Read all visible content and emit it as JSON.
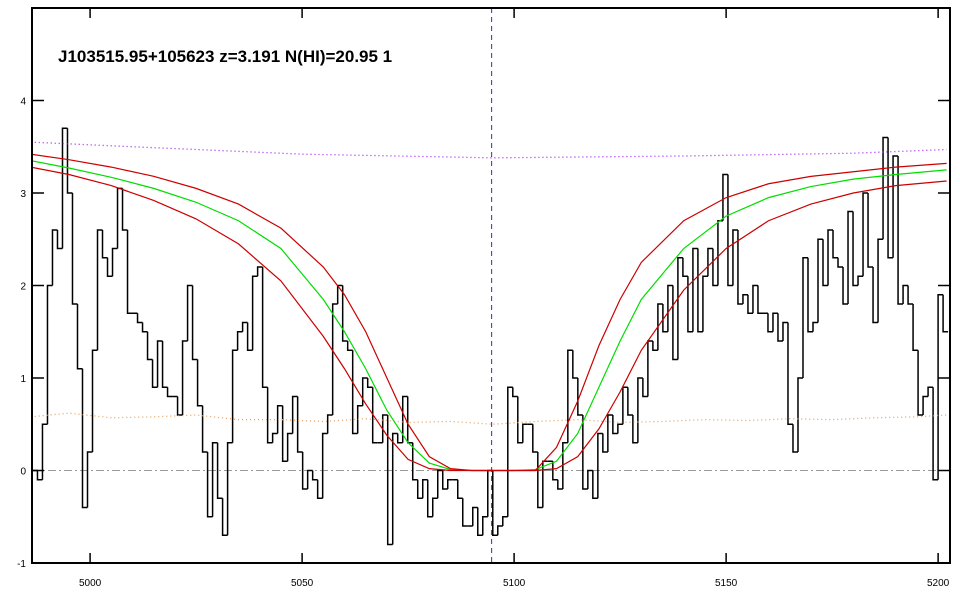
{
  "chart_data": {
    "type": "line",
    "title": "J103515.95+105623 z=3.191 N(HI)=20.95 1",
    "xlim": [
      4986.3,
      5202.8
    ],
    "ylim": [
      -1,
      5
    ],
    "xticks": [
      5000,
      5050,
      5100,
      5150,
      5200
    ],
    "yticks": [
      -1,
      0,
      1,
      2,
      3,
      4
    ],
    "vline": 5094.7,
    "hline": 0,
    "series": [
      {
        "color": "#000000",
        "style": "step",
        "x": [
          4987,
          4988.18,
          4989.36,
          4990.54,
          4991.72,
          4992.9,
          4994.08,
          4995.26,
          4996.44,
          4997.62,
          4998.8,
          4999.98,
          5001.16,
          5002.34,
          5003.52,
          5004.7,
          5005.88,
          5007.06,
          5008.24,
          5009.42,
          5010.6,
          5011.78,
          5012.96,
          5014.14,
          5015.32,
          5016.5,
          5017.68,
          5018.86,
          5020.04,
          5021.22,
          5022.4,
          5023.58,
          5024.76,
          5025.94,
          5027.12,
          5028.3,
          5029.48,
          5030.66,
          5031.84,
          5033.02,
          5034.2,
          5035.38,
          5036.56,
          5037.74,
          5038.92,
          5040.1,
          5041.28,
          5042.46,
          5043.64,
          5044.82,
          5046,
          5047.18,
          5048.36,
          5049.54,
          5050.72,
          5051.9,
          5053.08,
          5054.26,
          5055.44,
          5056.62,
          5057.8,
          5058.98,
          5060.16,
          5061.34,
          5062.52,
          5063.7,
          5064.88,
          5066.06,
          5067.24,
          5068.42,
          5069.6,
          5070.78,
          5071.96,
          5073.14,
          5074.32,
          5075.5,
          5076.68,
          5077.86,
          5079.04,
          5080.22,
          5081.4,
          5082.58,
          5083.76,
          5084.94,
          5086.12,
          5087.3,
          5088.48,
          5089.66,
          5090.84,
          5092.02,
          5093.2,
          5094.38,
          5095.56,
          5096.74,
          5097.92,
          5099.1,
          5100.28,
          5101.46,
          5102.64,
          5103.82,
          5105,
          5106.18,
          5107.36,
          5108.54,
          5109.72,
          5110.9,
          5112.08,
          5113.26,
          5114.44,
          5115.62,
          5116.8,
          5117.98,
          5119.16,
          5120.34,
          5121.52,
          5122.7,
          5123.88,
          5125.06,
          5126.24,
          5127.42,
          5128.6,
          5129.78,
          5130.96,
          5132.14,
          5133.32,
          5134.5,
          5135.68,
          5136.86,
          5138.04,
          5139.22,
          5140.4,
          5141.58,
          5142.76,
          5143.94,
          5145.12,
          5146.3,
          5147.48,
          5148.66,
          5149.84,
          5151.02,
          5152.2,
          5153.38,
          5154.56,
          5155.74,
          5156.92,
          5158.1,
          5159.28,
          5160.46,
          5161.64,
          5162.82,
          5164,
          5165.18,
          5166.36,
          5167.54,
          5168.72,
          5169.9,
          5171.08,
          5172.26,
          5173.44,
          5174.62,
          5175.8,
          5176.98,
          5178.16,
          5179.34,
          5180.52,
          5181.7,
          5182.88,
          5184.06,
          5185.24,
          5186.42,
          5187.6,
          5188.78,
          5189.96,
          5191.14,
          5192.32,
          5193.5,
          5194.68,
          5195.86,
          5197.04,
          5198.22,
          5199.4,
          5200.58,
          5201.76
        ],
        "values": [
          0,
          -0.1,
          0.5,
          2.0,
          2.6,
          2.4,
          3.7,
          3.0,
          1.8,
          1.1,
          -0.4,
          0.2,
          1.3,
          2.6,
          2.3,
          2.1,
          2.4,
          3.05,
          2.6,
          1.7,
          1.7,
          1.6,
          1.5,
          1.2,
          0.9,
          1.4,
          0.9,
          0.8,
          0.8,
          0.6,
          1.4,
          2.0,
          1.2,
          0.7,
          0.2,
          -0.5,
          0.3,
          -0.3,
          -0.7,
          0.3,
          1.3,
          1.5,
          1.6,
          1.3,
          2.1,
          2.2,
          0.9,
          0.3,
          0.4,
          0.7,
          0.1,
          0.4,
          0.8,
          0.2,
          -0.2,
          0.0,
          -0.1,
          -0.3,
          0.4,
          0.6,
          1.8,
          2.0,
          1.4,
          1.3,
          0.4,
          0.7,
          1.0,
          0.9,
          0.3,
          0.3,
          0.6,
          -0.8,
          0.4,
          0.3,
          0.8,
          0.3,
          -0.1,
          -0.3,
          -0.1,
          -0.5,
          -0.3,
          0.0,
          -0.2,
          -0.1,
          -0.1,
          -0.3,
          -0.6,
          -0.6,
          -0.4,
          -0.7,
          -0.5,
          0.0,
          -0.7,
          -0.6,
          -0.5,
          0.9,
          0.8,
          0.3,
          0.5,
          0.5,
          0.2,
          -0.4,
          0.1,
          0.1,
          -0.1,
          -0.2,
          0.3,
          1.3,
          1.0,
          0.6,
          -0.2,
          0.0,
          -0.3,
          0.4,
          0.2,
          0.6,
          0.4,
          0.5,
          0.9,
          0.6,
          0.3,
          1.0,
          0.8,
          1.4,
          1.3,
          1.8,
          1.5,
          2.0,
          1.2,
          2.3,
          2.1,
          1.5,
          2.4,
          1.5,
          2.1,
          2.4,
          2.0,
          2.7,
          3.2,
          2.0,
          2.6,
          1.8,
          1.9,
          1.7,
          2.0,
          1.7,
          1.7,
          1.5,
          1.7,
          1.4,
          1.6,
          0.5,
          0.2,
          1.0,
          2.3,
          1.5,
          1.6,
          2.5,
          2.0,
          2.6,
          2.3,
          2.2,
          1.8,
          2.8,
          2.0,
          2.1,
          3.0,
          2.2,
          1.6,
          2.5,
          3.6,
          2.3,
          3.4,
          1.8,
          2.0,
          1.8,
          1.3,
          0.6,
          0.8,
          0.9,
          -0.1,
          1.9,
          1.5
        ]
      },
      {
        "color": "#a020f0",
        "style": "dotted",
        "x": [
          4986,
          5010,
          5050,
          5095,
          5140,
          5180,
          5202
        ],
        "values": [
          3.55,
          3.5,
          3.42,
          3.38,
          3.4,
          3.43,
          3.47
        ]
      },
      {
        "color": "#e8a060",
        "style": "dotted",
        "x": [
          4986,
          4995,
          5005,
          5015,
          5025,
          5035,
          5045,
          5055,
          5065,
          5075,
          5085,
          5095,
          5105,
          5115,
          5125,
          5135,
          5145,
          5155,
          5165,
          5175,
          5185,
          5195,
          5202
        ],
        "values": [
          0.58,
          0.62,
          0.57,
          0.58,
          0.6,
          0.55,
          0.55,
          0.53,
          0.56,
          0.52,
          0.53,
          0.5,
          0.53,
          0.55,
          0.52,
          0.53,
          0.55,
          0.54,
          0.56,
          0.55,
          0.57,
          0.58,
          0.6
        ]
      },
      {
        "color": "#00dd00",
        "style": "solid",
        "x": [
          4986,
          4995,
          5005,
          5015,
          5025,
          5035,
          5045,
          5055,
          5060,
          5065,
          5070,
          5075,
          5080,
          5085,
          5090,
          5095,
          5100,
          5105,
          5110,
          5115,
          5120,
          5125,
          5130,
          5140,
          5150,
          5160,
          5170,
          5180,
          5190,
          5202
        ],
        "values": [
          3.35,
          3.27,
          3.17,
          3.05,
          2.9,
          2.7,
          2.4,
          1.85,
          1.5,
          1.1,
          0.65,
          0.3,
          0.08,
          0.01,
          0,
          0,
          0,
          0.01,
          0.1,
          0.4,
          0.9,
          1.4,
          1.85,
          2.4,
          2.75,
          2.95,
          3.07,
          3.15,
          3.2,
          3.25
        ]
      },
      {
        "color": "#cc0000",
        "style": "solid",
        "x": [
          4986,
          4995,
          5005,
          5015,
          5025,
          5035,
          5045,
          5055,
          5060,
          5065,
          5070,
          5075,
          5080,
          5085,
          5090,
          5095,
          5100,
          5105,
          5110,
          5115,
          5120,
          5125,
          5130,
          5140,
          5150,
          5160,
          5170,
          5180,
          5190,
          5202
        ],
        "values": [
          3.42,
          3.36,
          3.28,
          3.18,
          3.05,
          2.88,
          2.62,
          2.2,
          1.9,
          1.5,
          1.0,
          0.5,
          0.15,
          0.02,
          0,
          0,
          0,
          0,
          0.25,
          0.75,
          1.35,
          1.85,
          2.25,
          2.7,
          2.95,
          3.1,
          3.18,
          3.23,
          3.28,
          3.32
        ]
      },
      {
        "color": "#cc0000",
        "style": "solid",
        "x": [
          4986,
          4995,
          5005,
          5015,
          5025,
          5035,
          5045,
          5055,
          5060,
          5065,
          5070,
          5075,
          5080,
          5085,
          5090,
          5095,
          5100,
          5105,
          5110,
          5115,
          5120,
          5125,
          5130,
          5140,
          5150,
          5160,
          5170,
          5180,
          5190,
          5202
        ],
        "values": [
          3.28,
          3.2,
          3.08,
          2.92,
          2.72,
          2.45,
          2.05,
          1.45,
          1.1,
          0.72,
          0.38,
          0.12,
          0.02,
          0,
          0,
          0,
          0,
          0,
          0.02,
          0.15,
          0.45,
          0.85,
          1.3,
          1.95,
          2.4,
          2.7,
          2.88,
          3.0,
          3.08,
          3.13
        ]
      }
    ]
  }
}
